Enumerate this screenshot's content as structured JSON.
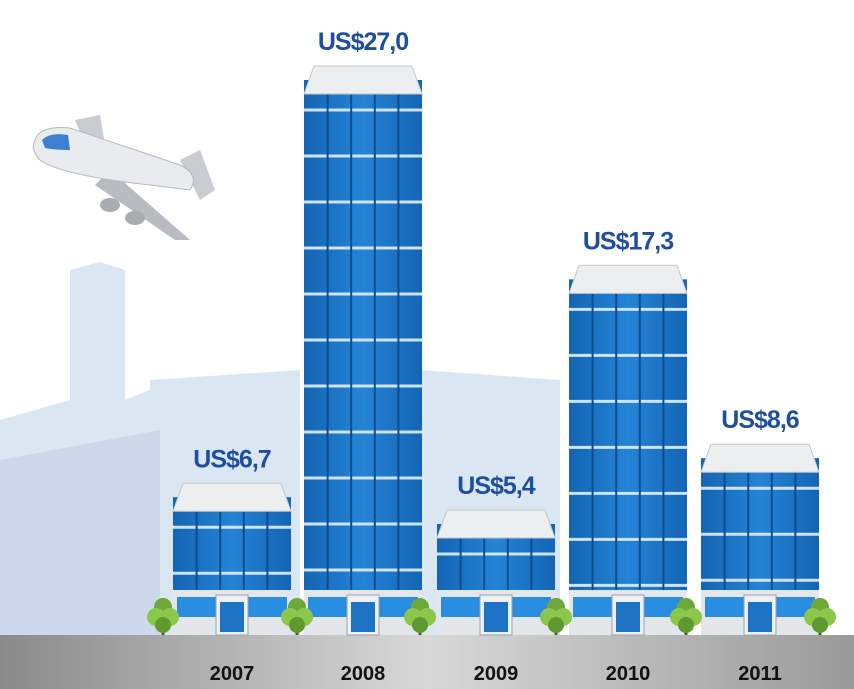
{
  "chart_data": {
    "type": "bar",
    "categories": [
      "2007",
      "2008",
      "2009",
      "2010",
      "2011"
    ],
    "values": [
      6.7,
      27.0,
      5.4,
      17.3,
      8.6
    ],
    "value_labels": [
      "US$6,7",
      "US$27,0",
      "US$5,4",
      "US$17,3",
      "US$8,6"
    ],
    "color": "#1c74c6"
  }
}
